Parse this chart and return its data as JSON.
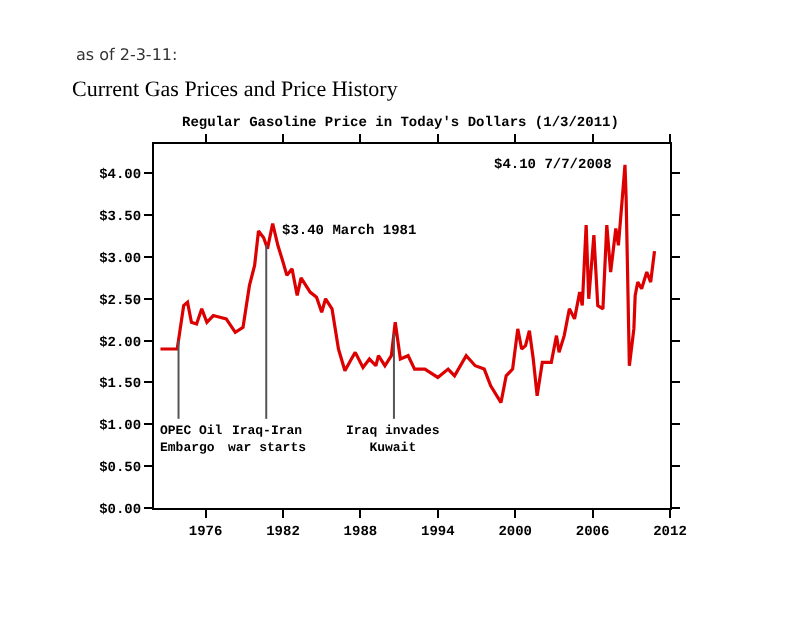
{
  "chart_data": {
    "type": "line",
    "title": "Current Gas Prices and Price History",
    "subtitle": "Regular Gasoline Price in Today's Dollars (1/3/2011)",
    "annotations": [
      "as of 2-3-11:",
      {
        "text": "$3.40 March 1981",
        "x": 1981.2,
        "y": 3.4
      },
      {
        "text": "$4.10 7/7/2008",
        "x": 2008.51,
        "y": 4.1
      }
    ],
    "series": [
      {
        "color": "#dd0000",
        "x": [
          1972.5,
          1973.8,
          1974.3,
          1974.6,
          1974.9,
          1975.3,
          1975.7,
          1976.1,
          1976.6,
          1977.1,
          1977.6,
          1978.3,
          1978.9,
          1979.4,
          1979.8,
          1980.1,
          1980.5,
          1980.8,
          1981.2,
          1981.6,
          1982.0,
          1982.3,
          1982.7,
          1983.1,
          1983.4,
          1984.1,
          1984.6,
          1985.0,
          1985.3,
          1985.8,
          1986.3,
          1986.8,
          1987.3,
          1987.6,
          1988.2,
          1988.7,
          1989.2,
          1989.4,
          1989.9,
          1990.4,
          1990.7,
          1991.1,
          1991.7,
          1992.2,
          1993.0,
          1994.0,
          1994.8,
          1995.3,
          1996.2,
          1996.9,
          1997.6,
          1998.1,
          1998.9,
          1999.3,
          1999.8,
          2000.2,
          2000.5,
          2000.8,
          2001.1,
          2001.4,
          2001.7,
          2002.1,
          2002.8,
          2003.2,
          2003.4,
          2003.8,
          2004.2,
          2004.6,
          2005.0,
          2005.2,
          2005.5,
          2005.7,
          2006.1,
          2006.4,
          2006.8,
          2007.1,
          2007.4,
          2007.8,
          2008.0,
          2008.3,
          2008.51,
          2008.6,
          2008.85,
          2009.2,
          2009.3,
          2009.5,
          2009.8,
          2010.2,
          2010.5,
          2010.8
        ],
        "values": [
          1.9,
          1.9,
          2.42,
          2.46,
          2.22,
          2.2,
          2.38,
          2.22,
          2.3,
          2.28,
          2.26,
          2.1,
          2.16,
          2.66,
          2.9,
          3.31,
          3.23,
          3.1,
          3.4,
          3.14,
          2.94,
          2.78,
          2.86,
          2.54,
          2.75,
          2.58,
          2.52,
          2.34,
          2.5,
          2.38,
          1.9,
          1.64,
          1.78,
          1.86,
          1.68,
          1.78,
          1.7,
          1.82,
          1.7,
          1.82,
          2.22,
          1.78,
          1.82,
          1.66,
          1.66,
          1.56,
          1.66,
          1.58,
          1.82,
          1.7,
          1.66,
          1.46,
          1.26,
          1.58,
          1.66,
          2.14,
          1.9,
          1.94,
          2.12,
          1.78,
          1.34,
          1.74,
          1.74,
          2.06,
          1.86,
          2.06,
          2.38,
          2.26,
          2.58,
          2.42,
          3.38,
          2.5,
          3.26,
          2.42,
          2.38,
          3.38,
          2.82,
          3.34,
          3.14,
          3.7,
          4.1,
          3.7,
          1.7,
          2.14,
          2.54,
          2.7,
          2.62,
          2.82,
          2.7,
          3.07
        ]
      }
    ],
    "xlim": [
      1972,
      2012
    ],
    "xticks": [
      1976,
      1982,
      1988,
      1994,
      2000,
      2006,
      2012
    ],
    "ylim": [
      0,
      4.35
    ],
    "yticks": [
      {
        "value": 0,
        "label": "$0.00"
      },
      {
        "value": 0.5,
        "label": "$0.50"
      },
      {
        "value": 1,
        "label": "$1.00"
      },
      {
        "value": 1.5,
        "label": "$1.50"
      },
      {
        "value": 2,
        "label": "$2.00"
      },
      {
        "value": 2.5,
        "label": "$2.50"
      },
      {
        "value": 3,
        "label": "$3.00"
      },
      {
        "value": 3.5,
        "label": "$3.50"
      },
      {
        "value": 4,
        "label": "$4.00"
      }
    ],
    "ref_lines": [
      {
        "axis": "x",
        "value": 1973.9,
        "label": "OPEC Oil\nEmbargo",
        "color": "#555555"
      },
      {
        "axis": "x",
        "value": 1980.7,
        "label": "Iraq-Iran\nwar starts",
        "color": "#555555"
      },
      {
        "axis": "x",
        "value": 1990.6,
        "label": "Iraq invades\nKuwait",
        "color": "#555555"
      }
    ],
    "marker": "none",
    "line_style": "solid"
  }
}
